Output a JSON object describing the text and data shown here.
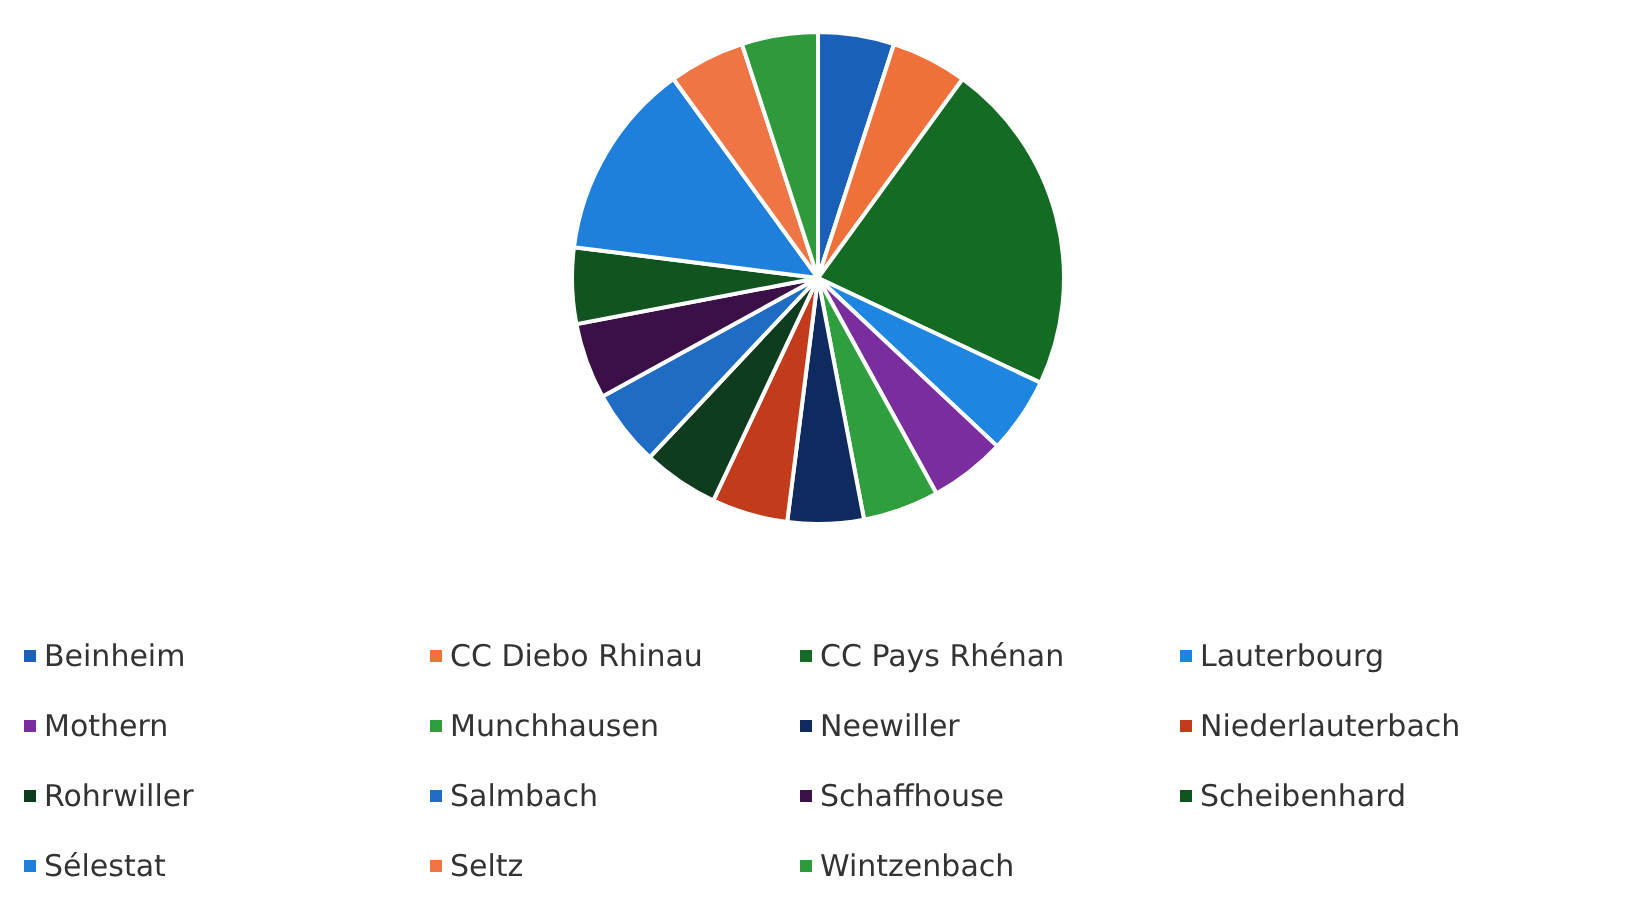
{
  "chart_data": {
    "type": "pie",
    "categories": [
      "Beinheim",
      "CC Diebo Rhinau",
      "CC Pays Rhénan",
      "Lauterbourg",
      "Mothern",
      "Munchhausen",
      "Neewiller",
      "Niederlauterbach",
      "Rohrwiller",
      "Salmbach",
      "Schaffhouse",
      "Scheibenhard",
      "Sélestat",
      "Seltz",
      "Wintzenbach"
    ],
    "values": [
      5,
      5,
      22,
      5,
      5,
      5,
      5,
      5,
      5,
      5,
      5,
      5,
      13,
      5,
      5
    ],
    "colors": [
      "#1a5fb8",
      "#f0703a",
      "#136b24",
      "#1e86e0",
      "#7a2d9e",
      "#2f9e3e",
      "#0e2a5e",
      "#c23c1c",
      "#0f3b1f",
      "#1f6cc4",
      "#3b1046",
      "#11541f",
      "#1e80da",
      "#f07544",
      "#2f9a3b"
    ],
    "legend": "bottom"
  }
}
